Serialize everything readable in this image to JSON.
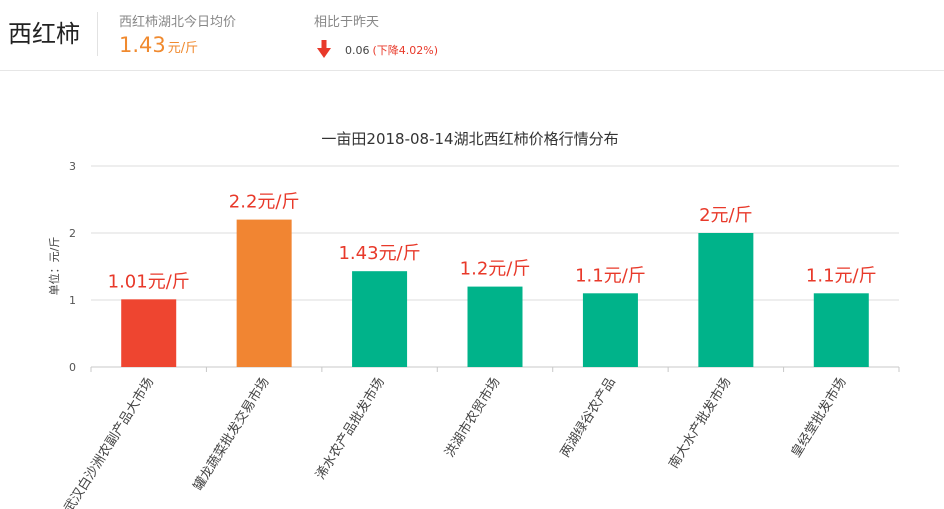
{
  "header": {
    "product_name": "西红柿",
    "avg_label": "西红柿湖北今日均价",
    "avg_value": "1.43",
    "avg_unit": "元/斤",
    "compare_label": "相比于昨天",
    "compare_value": "0.06",
    "compare_change": "(下降4.02%)"
  },
  "colors": {
    "accent_orange": "#f08a2f",
    "down_red": "#e8392a",
    "bar_red": "#ee4530",
    "bar_orange": "#f18532",
    "bar_teal": "#00b38a"
  },
  "chart_data": {
    "type": "bar",
    "title": "一亩田2018-08-14湖北西红柿价格行情分布",
    "ylabel": "单位：元/斤",
    "ylim": [
      0,
      3
    ],
    "yticks": [
      0,
      1,
      2,
      3
    ],
    "grid": true,
    "categories": [
      "武汉白沙洲农副产品大市场",
      "罐龙蔬菜批发交易市场",
      "浠水农产品批发市场",
      "洪湖市农贸市场",
      "两湖绿谷农产品",
      "南大水产批发市场",
      "皇经堂批发市场"
    ],
    "values": [
      1.01,
      2.2,
      1.43,
      1.2,
      1.1,
      2,
      1.1
    ],
    "data_labels": [
      "1.01元/斤",
      "2.2元/斤",
      "1.43元/斤",
      "1.2元/斤",
      "1.1元/斤",
      "2元/斤",
      "1.1元/斤"
    ],
    "bar_colors": [
      "#ee4530",
      "#f18532",
      "#00b38a",
      "#00b38a",
      "#00b38a",
      "#00b38a",
      "#00b38a"
    ]
  }
}
